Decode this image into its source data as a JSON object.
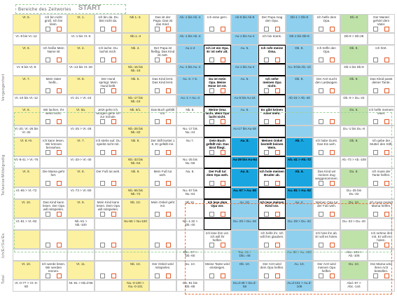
{
  "header": {
    "title": "Bereiche des Zeitwortes",
    "start": "START"
  },
  "side_labels": [
    "Vergangenheit",
    "Teilweise/Mittelgradig",
    "Ich/Er/Sie/Es",
    "Total"
  ],
  "cells": [
    [
      "Vt. 5.",
      "Ich bin nicht groß. Ich bin klein.",
      "Vt. 1.",
      "Ich bin da. Du bist nicht da.",
      "Nb 1.-3.",
      "Das ist der Papa. Das ist das Kind.",
      "Ab.-1 bis Ab.-4",
      "Ich esse gern.",
      "Ab-5 bis Ab-8",
      "Der Papa mag den Opa.",
      "Db-1 > Db-8",
      "Ich helfe dem Opa.",
      "Db.-8",
      "Der Mantel gehört dem Vater."
    ],
    [
      "Vt.-9 bis Vt.-12",
      "",
      "Vt.-1 bis Vt.-5",
      "",
      "Nb.1.-3",
      "",
      "Ab.-1 bis Ab.-4",
      "",
      "Au-1 bis Au-4",
      "Ich bin krank.",
      "Db-1 bis Db-8",
      "",
      "Db-9 > Db-28",
      ""
    ],
    [
      "Vt. 6.",
      "Ich heiße Mein Name ist",
      "Vt. 4.",
      "Ich lache. Du lachst mich.",
      "Nb. 4.",
      "Der Papa ist fleißig. Das Kind ist nett.",
      "Au.1-4",
      "Ich ist ein Opa. Er ist sehr alt.",
      "Au. 5.",
      "Ich rufe meine Oma.",
      "Db. 8.",
      "Ich treffe den Opa.",
      "Db. 9.",
      "Ich hört."
    ],
    [
      "Vt.-6 bis Vt.-8",
      "",
      "Vt.-13 bis Vt.-20",
      "",
      "Nb.-15 bis Nb.-16",
      "",
      "Au.-1 bis Au.-4",
      "",
      "Au-1 bis Au-4",
      "",
      "Au.-9 bis Ab.-12",
      "",
      "Db-1 bis Db-8",
      ""
    ],
    [
      "Vt. 7.",
      "Mein Vater heißt...",
      "Vt. 8.",
      "Der Hund springt. Mein Hund bellt.",
      "Nb. 5.",
      "Das Kind lernt. Das Kind lernt.",
      "Au. 3. > 5.",
      "Da ist mein Opa. Meine Hose ist rot.",
      "Au. 5.",
      "Ich sehe meinen Opa nicht.",
      "Db. 8.",
      "Der Arzt sucht den Lastwagen.",
      "Db. 9.",
      "Das Kleid passt deiner Tante."
    ],
    [
      "Vt.-10 bis Vt.-12",
      "",
      "Vt.-21 > Vt.-24",
      "",
      "Nb.-17 bis Nb.-24",
      "",
      "Au.-1 > Au.-4",
      "",
      "Au-5 bis Au-16",
      "",
      "Ab-15 > Ab.-40",
      "",
      "Db.-9 > Du.-24",
      ""
    ],
    [
      "Vt. 6.",
      "Wir lachen. Ihr weint nicht.",
      "Vt. 6a.",
      "Jetzt gehe ich. Morgen gehe ich zur Schule.",
      "Nb. 6/1.",
      "Das Buch gefällt mir.",
      "Nb. 6.",
      "Meine Oma lacht. Mein Opa lacht nicht.",
      "Au. 6.",
      "Es gibt keinen Käse mehr.",
      "",
      "",
      "Du. 6.",
      "Ich helfe meinem Vater."
    ],
    [
      "Vt.-20, Vt.-26 bis Vt.-32",
      "",
      "Vt.-25 > Vt.-28",
      "",
      "Nb.-25 bis Nb.-32",
      "",
      "Nu.-17 bis Nu.-24",
      "",
      "Au-17 bis Au-28",
      "",
      "",
      "",
      "Du.-1 bis Du.-8",
      ""
    ],
    [
      "Vt. 8.+9.",
      "Ich kann lesen. Wir können fernsehen.",
      "Vt. 7.",
      "Ich stehe auf. Du spielst nicht mit.",
      "Nb. 8.",
      "Der Stift kostet 1 €. Er gefällt mir.",
      "Nu 7.",
      "Dein Buch gefällt mir. Das Brot fliegt.",
      "Au. 8.",
      "Meinen Onkel bestellt keinen Wein.",
      "Ab. 7.",
      "Ich habe Durst. Das Eis weh.",
      "Db. 8.",
      "Ich gebe der Mutter den Stift."
    ],
    [
      "Vt.-8-41 > Vt.-76",
      "",
      "Vt.-33-> Vt.-40",
      "",
      "Nb.-33 bis Nb.-64",
      "",
      "Nu.-25 bis Nu.-56",
      "",
      "Au-29 bis Au-64",
      "",
      "Ab.-41 > Ab.-72",
      "",
      "Ab.-73 > Ab.-108",
      ""
    ],
    [
      "Vt. 9.",
      "Die Mama geht fort.",
      "Vt. 8.",
      "Der Fuß tut weh.",
      "Nb. 9.",
      "Mein Fuß tut weh.",
      "Nu. 8.",
      "Der Fuß tut dem Opa weh.",
      "Au. 8.",
      "Ich hole meinen Bruder ab.",
      "Ab. 8.",
      "Das Kind wir meinen Zug weggenommen.",
      "Du. 8.",
      "Ich muss der Tante helfen."
    ],
    [
      "Vt.-65 > Vt.-72",
      "",
      "Vt.-73 > Vt.-80",
      "",
      "Nb.-65 bis Nb.-72",
      "",
      "Nu.-57 bis Nu.-64",
      "",
      "Au.-57 > Au.-80",
      "",
      "Au.-81 > Au.-92",
      "",
      "Du.-25 bis Du.-32",
      ""
    ],
    [
      "Vt. 10.",
      "Das Kind kann lesen. Der Opa will mitspielen.",
      "Vt. 9.",
      "Mein Kind kann lesen. Dein Opa will mitspielen.",
      "Nb. 10.",
      "Mein Onkel geht mir.",
      "Nb 10.",
      "Ich lese dem Opa vor.",
      "Au. 10.",
      "Ich lese meinen Kind vor.",
      "Au. 4.",
      "Meinen Opa tut der Fuß weh.",
      "Du. 10.",
      "Ich muss meiner Mama helfen."
    ],
    [
      "Vt.-81 > Vt.-92",
      "",
      "Nb.-81 > Nb.-100",
      "",
      "Nu-65 > Nu-100",
      "",
      "Nb.-1.32 > Db.-40",
      "",
      "Du.-29 > Du.-28",
      "",
      "Du.-29 > Du.-32",
      "",
      "Du.-33 > Du.-40",
      ""
    ],
    [
      "",
      "",
      "",
      "",
      "",
      "",
      "",
      "Ich lese ihm vor. Ich will ihr helfen.",
      "",
      "Ich helfe ihr. Ich will ihm glauben.",
      "",
      "Ich hole ihn ab. Er will es holen.",
      "",
      "Ich nehme ihn mit. Er will es holen."
    ],
    [
      "",
      "",
      "",
      "",
      "",
      "",
      "Dbc.-57 > Db.-60",
      "",
      "Tau.-41 > Dbc.-48",
      "",
      "Au.-93 > Au.-100",
      "",
      "Abc.-101 > Ab.-106",
      ""
    ],
    [
      "Vt. 10.",
      "Ich werde lesen. Wir werden rennen.",
      "Vt. 11.",
      "",
      "Nb. 10.",
      "Der Onkel wird mitspielen.",
      "Nu. 10.",
      "Meine Tante wird einsteigen.",
      "Db. 10.",
      "Der Arzt wird dem Opa helfen.",
      "Au. 10.",
      "Der Arzt wird meinen Opa helfen.",
      "Du. 10.",
      "Die Mama wird ihren Arzt bestellen."
    ],
    [
      "Vt.-0-77 > Vt.-0-80",
      "",
      "Nt.-81 > Nb.d-96",
      "",
      "Nu.-0-100 > Nu.-0-101",
      "",
      "Db.-81 bis Db.-88",
      "",
      "Du.d-49 > Du.d-56",
      "",
      "Au.d-101 > Au.d-108",
      "",
      "Abd.-97 > Abc.-144",
      ""
    ]
  ]
}
